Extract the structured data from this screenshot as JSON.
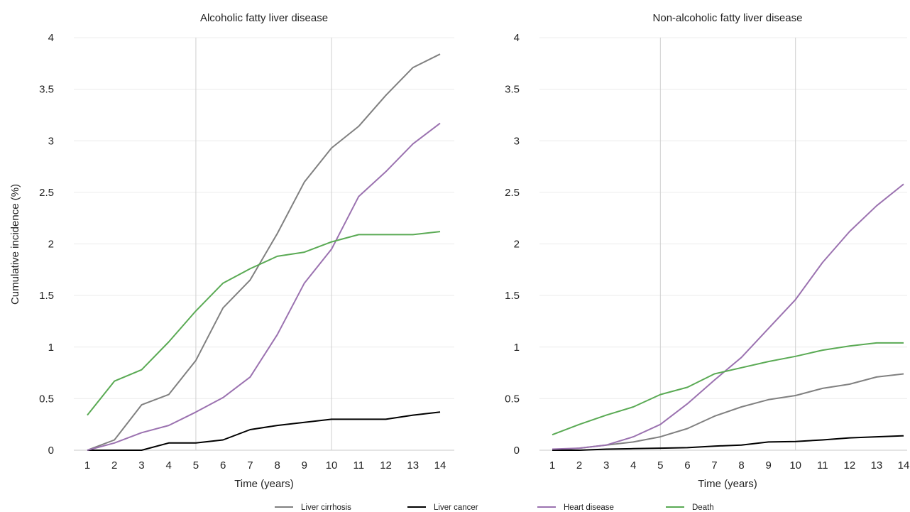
{
  "legend": {
    "position": "bottom-center",
    "items": [
      {
        "name": "Liver cirrhosis",
        "color": "#808080"
      },
      {
        "name": "Liver cancer",
        "color": "#000000"
      },
      {
        "name": "Heart disease",
        "color": "#9b72b0"
      },
      {
        "name": "Death",
        "color": "#5aaa54"
      }
    ]
  },
  "chart_data": [
    {
      "type": "line",
      "title": "Alcoholic fatty liver disease",
      "xlabel": "Time (years)",
      "ylabel": "Cumulative incidence (%)",
      "ylim": [
        0,
        4
      ],
      "yticks": [
        0,
        0.5,
        1,
        1.5,
        2,
        2.5,
        3,
        3.5,
        4
      ],
      "ytick_labels": [
        "0",
        "0.5",
        "1",
        "1.5",
        "2",
        "2.5",
        "3",
        "3.5",
        "4"
      ],
      "grid": "horizontal",
      "vertical_reference_lines": [
        5,
        10
      ],
      "x": [
        1,
        2,
        3,
        4,
        5,
        6,
        7,
        8,
        9,
        10,
        11,
        12,
        13,
        14
      ],
      "series": [
        {
          "name": "Liver cirrhosis",
          "color": "#808080",
          "values": [
            0,
            0.1,
            0.44,
            0.54,
            0.87,
            1.38,
            1.65,
            2.1,
            2.6,
            2.93,
            3.14,
            3.44,
            3.71,
            3.84
          ]
        },
        {
          "name": "Liver cancer",
          "color": "#000000",
          "values": [
            0,
            0,
            0,
            0.07,
            0.07,
            0.1,
            0.2,
            0.24,
            0.27,
            0.3,
            0.3,
            0.3,
            0.34,
            0.37
          ]
        },
        {
          "name": "Heart disease",
          "color": "#9b72b0",
          "values": [
            0,
            0.07,
            0.17,
            0.24,
            0.37,
            0.51,
            0.71,
            1.12,
            1.62,
            1.95,
            2.46,
            2.7,
            2.97,
            3.17
          ]
        },
        {
          "name": "Death",
          "color": "#5aaa54",
          "values": [
            0.34,
            0.67,
            0.78,
            1.05,
            1.35,
            1.62,
            1.76,
            1.88,
            1.92,
            2.02,
            2.09,
            2.09,
            2.09,
            2.12
          ]
        }
      ]
    },
    {
      "type": "line",
      "title": "Non-alcoholic fatty liver disease",
      "xlabel": "Time (years)",
      "ylabel": "",
      "ylim": [
        0,
        4
      ],
      "yticks": [
        0,
        0.5,
        1,
        1.5,
        2,
        2.5,
        3,
        3.5,
        4
      ],
      "ytick_labels": [
        "0",
        "0.5",
        "1",
        "1.5",
        "2",
        "2.5",
        "3",
        "3.5",
        "4"
      ],
      "grid": "horizontal",
      "vertical_reference_lines": [
        5,
        10
      ],
      "x": [
        1,
        2,
        3,
        4,
        5,
        6,
        7,
        8,
        9,
        10,
        11,
        12,
        13,
        14
      ],
      "series": [
        {
          "name": "Liver cirrhosis",
          "color": "#808080",
          "values": [
            0,
            0.02,
            0.05,
            0.08,
            0.13,
            0.21,
            0.33,
            0.42,
            0.49,
            0.53,
            0.6,
            0.64,
            0.71,
            0.74
          ]
        },
        {
          "name": "Liver cancer",
          "color": "#000000",
          "values": [
            0,
            0,
            0.01,
            0.015,
            0.02,
            0.025,
            0.04,
            0.05,
            0.08,
            0.085,
            0.1,
            0.12,
            0.13,
            0.14
          ]
        },
        {
          "name": "Heart disease",
          "color": "#9b72b0",
          "values": [
            0.01,
            0.02,
            0.05,
            0.13,
            0.25,
            0.45,
            0.68,
            0.9,
            1.18,
            1.46,
            1.82,
            2.12,
            2.37,
            2.58
          ]
        },
        {
          "name": "Death",
          "color": "#5aaa54",
          "values": [
            0.15,
            0.25,
            0.34,
            0.42,
            0.54,
            0.61,
            0.74,
            0.8,
            0.86,
            0.91,
            0.97,
            1.01,
            1.04,
            1.04
          ]
        }
      ]
    }
  ]
}
